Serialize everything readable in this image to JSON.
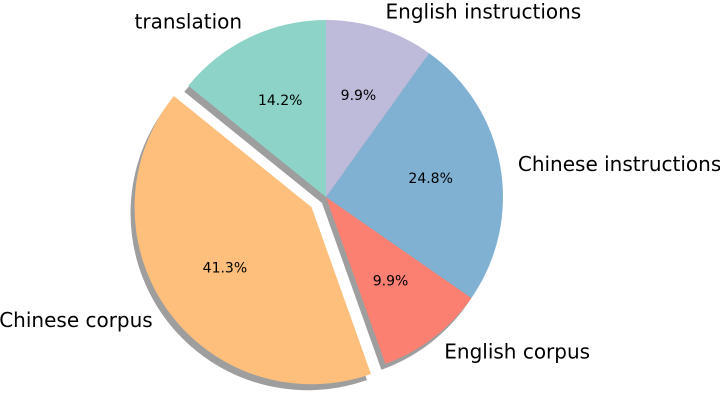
{
  "chart_data": {
    "type": "pie",
    "title": "",
    "slices": [
      {
        "label": "translation",
        "value": 14.2,
        "pct_label": "14.2%",
        "color": "#8dd3c7",
        "explode": false
      },
      {
        "label": "Chinese corpus",
        "value": 41.3,
        "pct_label": "41.3%",
        "color": "#fdbf7b",
        "explode": true
      },
      {
        "label": "English corpus",
        "value": 9.9,
        "pct_label": "9.9%",
        "color": "#fb8072",
        "explode": false
      },
      {
        "label": "Chinese instructions",
        "value": 24.8,
        "pct_label": "24.8%",
        "color": "#80b1d3",
        "explode": false
      },
      {
        "label": "English instructions",
        "value": 9.9,
        "pct_label": "9.9%",
        "color": "#bebada",
        "explode": false
      }
    ],
    "start_angle_deg": 90,
    "direction": "counterclockwise",
    "shadow": true,
    "legend": "none"
  }
}
